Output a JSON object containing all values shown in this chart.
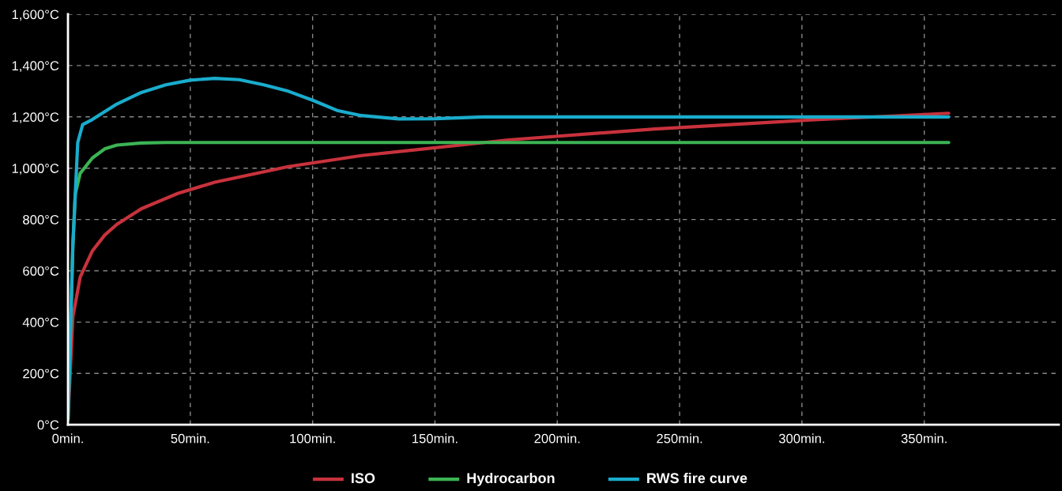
{
  "chart_data": {
    "type": "line",
    "x": [
      0,
      2,
      5,
      10,
      15,
      20,
      30,
      45,
      60,
      90,
      120,
      180,
      240,
      300,
      360
    ],
    "series": [
      {
        "name": "ISO",
        "color": "#c8323c",
        "values": [
          20,
          420,
          576,
          678,
          739,
          781,
          842,
          902,
          945,
          1006,
          1049,
          1110,
          1153,
          1186,
          1214
        ]
      },
      {
        "name": "Hydrocarbon",
        "color": "#3cb454",
        "x": [
          0,
          2,
          3,
          5,
          10,
          15,
          20,
          30,
          40,
          360
        ],
        "values": [
          20,
          700,
          900,
          980,
          1040,
          1075,
          1090,
          1098,
          1100,
          1100
        ]
      },
      {
        "name": "RWS fire curve",
        "color": "#1aaccc",
        "x": [
          0,
          2,
          4,
          6,
          10,
          20,
          30,
          40,
          50,
          60,
          70,
          80,
          90,
          100,
          110,
          120,
          135,
          150,
          170,
          360
        ],
        "values": [
          20,
          700,
          1100,
          1170,
          1190,
          1250,
          1295,
          1325,
          1343,
          1350,
          1345,
          1325,
          1300,
          1265,
          1225,
          1205,
          1192,
          1193,
          1200,
          1200
        ]
      }
    ],
    "xlim": [
      0,
      405
    ],
    "ylim": [
      0,
      1600
    ],
    "xticks": [
      {
        "value": 0,
        "label": "0min."
      },
      {
        "value": 50,
        "label": "50min."
      },
      {
        "value": 100,
        "label": "100min."
      },
      {
        "value": 150,
        "label": "150min."
      },
      {
        "value": 200,
        "label": "200min."
      },
      {
        "value": 250,
        "label": "250min."
      },
      {
        "value": 300,
        "label": "300min."
      },
      {
        "value": 350,
        "label": "350min."
      }
    ],
    "yticks": [
      {
        "value": 0,
        "label": "0°C"
      },
      {
        "value": 200,
        "label": "200°C"
      },
      {
        "value": 400,
        "label": "400°C"
      },
      {
        "value": 600,
        "label": "600°C"
      },
      {
        "value": 800,
        "label": "800°C"
      },
      {
        "value": 1000,
        "label": "1,000°C"
      },
      {
        "value": 1200,
        "label": "1,200°C"
      },
      {
        "value": 1400,
        "label": "1,400°C"
      },
      {
        "value": 1600,
        "label": "1,600°C"
      }
    ],
    "grid": true,
    "legend": "bottom",
    "marker": "none",
    "line_style": "solid"
  }
}
